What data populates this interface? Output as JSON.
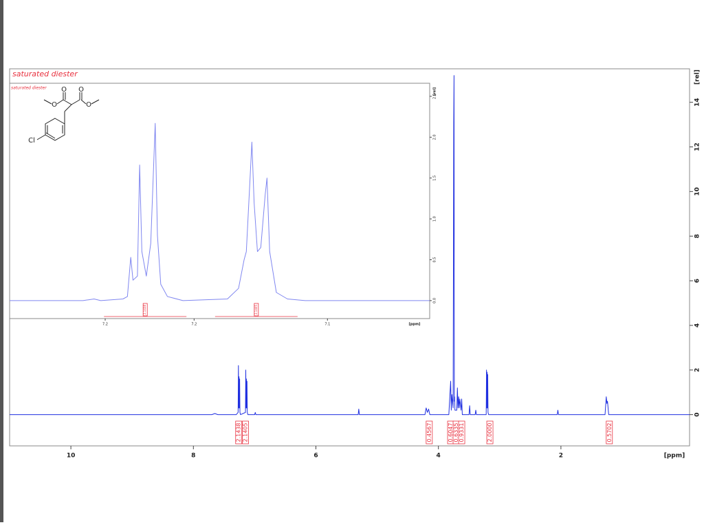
{
  "chart_data": [
    {
      "type": "line",
      "title": "saturated diester",
      "xlabel": "[ppm]",
      "ylabel": "[rel]",
      "color": "#1f2fe0",
      "xlim": [
        11,
        -0.1
      ],
      "xticks": [
        10,
        8,
        6,
        4,
        2
      ],
      "ylim": [
        -1.4,
        15.5
      ],
      "yticks": [
        0,
        2,
        4,
        6,
        8,
        10,
        12,
        14
      ],
      "x": [
        11,
        7.7,
        7.65,
        7.6,
        7.3,
        7.27,
        7.265,
        7.26,
        7.255,
        7.25,
        7.245,
        7.24,
        7.23,
        7.15,
        7.145,
        7.14,
        7.135,
        7.13,
        7.125,
        7.12,
        7.11,
        7.0,
        6.99,
        6.98,
        5.31,
        5.3,
        5.29,
        4.22,
        4.2,
        4.18,
        4.16,
        4.14,
        3.83,
        3.8,
        3.79,
        3.78,
        3.76,
        3.75,
        3.745,
        3.74,
        3.735,
        3.73,
        3.7,
        3.69,
        3.68,
        3.67,
        3.66,
        3.65,
        3.63,
        3.62,
        3.61,
        3.5,
        3.49,
        3.48,
        3.4,
        3.39,
        3.38,
        3.22,
        3.215,
        3.21,
        3.205,
        3.2,
        3.195,
        3.19,
        3.18,
        2.06,
        2.05,
        2.04,
        1.28,
        1.27,
        1.26,
        1.25,
        1.24,
        1.23,
        1.22,
        -0.1
      ],
      "values": [
        0,
        0,
        0.05,
        0,
        0,
        0.1,
        2.2,
        0.3,
        1.7,
        0.3,
        1.6,
        0.1,
        0,
        0.1,
        2.0,
        0.3,
        1.6,
        0.3,
        1.5,
        0.1,
        0,
        0,
        0.1,
        0,
        0,
        0.25,
        0,
        0,
        0.3,
        0.1,
        0.25,
        0,
        0,
        1.5,
        0.2,
        0.9,
        0.3,
        13.1,
        15.2,
        0.6,
        0.8,
        0.2,
        0.2,
        1.2,
        0.3,
        0.8,
        0.3,
        0.7,
        0.2,
        0.7,
        0,
        0,
        0.4,
        0,
        0,
        0.2,
        0,
        0,
        2.0,
        0.3,
        1.9,
        0.3,
        1.8,
        0.1,
        0,
        0,
        0.2,
        0,
        0,
        0.4,
        0.8,
        0.5,
        0.6,
        0.3,
        0,
        0
      ],
      "integrals": {
        "x": [
          7.26,
          7.15,
          4.15,
          3.8,
          3.71,
          3.62,
          3.16,
          1.21
        ],
        "values": [
          2.1438,
          2.1405,
          0.4567,
          0.6047,
          0.6335,
          0.9331,
          2,
          0.5702
        ],
        "value_labels": [
          "2.1438",
          "2.1405",
          "0.4567",
          "0.6047",
          "0.6335",
          "0.9331",
          "2.0000",
          "0.5702"
        ]
      }
    },
    {
      "type": "line",
      "title": "saturated diester",
      "xlabel": "[ppm]",
      "ylabel": "[rel]",
      "color": "#7f86f0",
      "xlim": [
        7.283,
        7.094
      ],
      "xticks": [
        {
          "value": 7.24,
          "label": "7.2"
        },
        {
          "value": 7.2,
          "label": "7.2"
        },
        {
          "value": 7.14,
          "label": "7.1"
        }
      ],
      "ylim": [
        -0.22,
        2.66
      ],
      "yticks": [
        {
          "value": 0,
          "label": "0.0"
        },
        0.5,
        {
          "value": 1,
          "label": "1.0"
        },
        1.5,
        {
          "value": 2,
          "label": "2.0"
        },
        2.5
      ],
      "x": [
        7.283,
        7.25,
        7.245,
        7.242,
        7.232,
        7.23,
        7.2285,
        7.2275,
        7.2255,
        7.2245,
        7.2235,
        7.2215,
        7.2195,
        7.2175,
        7.2165,
        7.215,
        7.212,
        7.205,
        7.185,
        7.18,
        7.1775,
        7.1765,
        7.175,
        7.174,
        7.173,
        7.1715,
        7.17,
        7.168,
        7.1672,
        7.166,
        7.163,
        7.158,
        7.15,
        7.094
      ],
      "values": [
        0,
        0,
        0.02,
        0,
        0.02,
        0.05,
        0.53,
        0.25,
        0.3,
        1.66,
        0.6,
        0.3,
        0.7,
        2.17,
        0.8,
        0.2,
        0.05,
        0,
        0.02,
        0.15,
        0.5,
        0.6,
        1.4,
        1.94,
        1.2,
        0.6,
        0.65,
        1.3,
        1.5,
        0.6,
        0.1,
        0.02,
        0,
        0
      ],
      "integrals": {
        "x": [
          7.222,
          7.172
        ],
        "values": [
          2.1438,
          2.1405
        ],
        "value_labels": [
          "2.1438",
          "2.1405"
        ]
      }
    }
  ],
  "structure": {
    "atoms": [
      "O",
      "O",
      "O",
      "O",
      "Cl"
    ]
  }
}
